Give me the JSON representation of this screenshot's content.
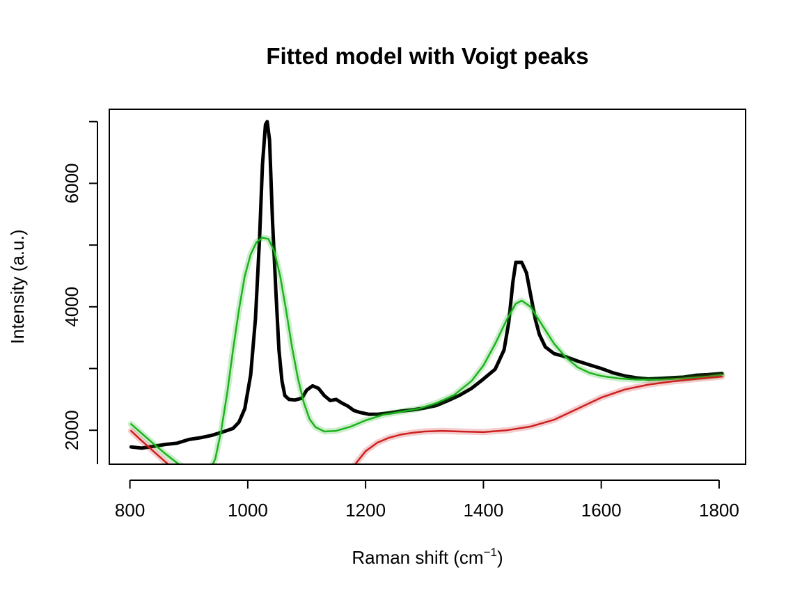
{
  "chart_data": {
    "type": "line",
    "title": "Fitted model with Voigt peaks",
    "xlabel": "Raman shift (cm",
    "xlabel_superscript": "−1",
    "xlabel_suffix": ")",
    "ylabel": "Intensity (a.u.)",
    "xlim": [
      765,
      1845
    ],
    "ylim": [
      1450,
      7200
    ],
    "x_ticks": [
      800,
      1000,
      1200,
      1400,
      1600,
      1800
    ],
    "y_ticks": [
      2000,
      4000,
      6000
    ],
    "y_tick_labels": [
      "2000",
      "4000",
      "6000"
    ],
    "x_tick_labels": [
      "800",
      "1000",
      "1200",
      "1400",
      "1600",
      "1800"
    ],
    "grid": false,
    "series": [
      {
        "color": "#000000",
        "points": [
          [
            802,
            1730
          ],
          [
            820,
            1710
          ],
          [
            840,
            1740
          ],
          [
            860,
            1770
          ],
          [
            880,
            1790
          ],
          [
            900,
            1850
          ],
          [
            920,
            1880
          ],
          [
            940,
            1920
          ],
          [
            960,
            1980
          ],
          [
            975,
            2030
          ],
          [
            985,
            2130
          ],
          [
            995,
            2350
          ],
          [
            1005,
            2900
          ],
          [
            1013,
            3800
          ],
          [
            1020,
            5100
          ],
          [
            1025,
            6300
          ],
          [
            1030,
            6950
          ],
          [
            1033,
            7000
          ],
          [
            1037,
            6700
          ],
          [
            1042,
            5400
          ],
          [
            1048,
            4200
          ],
          [
            1053,
            3300
          ],
          [
            1058,
            2800
          ],
          [
            1063,
            2560
          ],
          [
            1070,
            2500
          ],
          [
            1080,
            2490
          ],
          [
            1092,
            2520
          ],
          [
            1100,
            2650
          ],
          [
            1110,
            2720
          ],
          [
            1120,
            2680
          ],
          [
            1130,
            2560
          ],
          [
            1140,
            2480
          ],
          [
            1150,
            2500
          ],
          [
            1160,
            2440
          ],
          [
            1170,
            2390
          ],
          [
            1180,
            2320
          ],
          [
            1190,
            2290
          ],
          [
            1205,
            2260
          ],
          [
            1220,
            2260
          ],
          [
            1240,
            2280
          ],
          [
            1260,
            2310
          ],
          [
            1280,
            2330
          ],
          [
            1300,
            2360
          ],
          [
            1320,
            2400
          ],
          [
            1340,
            2480
          ],
          [
            1360,
            2570
          ],
          [
            1380,
            2680
          ],
          [
            1400,
            2830
          ],
          [
            1420,
            2990
          ],
          [
            1435,
            3300
          ],
          [
            1443,
            3750
          ],
          [
            1450,
            4400
          ],
          [
            1455,
            4720
          ],
          [
            1465,
            4720
          ],
          [
            1473,
            4550
          ],
          [
            1480,
            4200
          ],
          [
            1488,
            3800
          ],
          [
            1495,
            3550
          ],
          [
            1505,
            3350
          ],
          [
            1520,
            3240
          ],
          [
            1540,
            3190
          ],
          [
            1560,
            3120
          ],
          [
            1580,
            3060
          ],
          [
            1600,
            3000
          ],
          [
            1620,
            2930
          ],
          [
            1640,
            2880
          ],
          [
            1660,
            2850
          ],
          [
            1680,
            2830
          ],
          [
            1700,
            2840
          ],
          [
            1720,
            2850
          ],
          [
            1740,
            2860
          ],
          [
            1760,
            2890
          ],
          [
            1780,
            2900
          ],
          [
            1805,
            2920
          ]
        ]
      },
      {
        "color": "#1DB31D",
        "points": [
          [
            802,
            2100
          ],
          [
            820,
            1950
          ],
          [
            840,
            1780
          ],
          [
            860,
            1620
          ],
          [
            880,
            1470
          ],
          [
            900,
            1360
          ],
          [
            920,
            1300
          ],
          [
            935,
            1330
          ],
          [
            945,
            1540
          ],
          [
            955,
            2000
          ],
          [
            965,
            2600
          ],
          [
            975,
            3300
          ],
          [
            985,
            3950
          ],
          [
            995,
            4500
          ],
          [
            1005,
            4850
          ],
          [
            1015,
            5050
          ],
          [
            1025,
            5120
          ],
          [
            1035,
            5100
          ],
          [
            1045,
            4900
          ],
          [
            1055,
            4500
          ],
          [
            1065,
            3950
          ],
          [
            1075,
            3350
          ],
          [
            1085,
            2850
          ],
          [
            1095,
            2450
          ],
          [
            1105,
            2180
          ],
          [
            1115,
            2050
          ],
          [
            1130,
            1980
          ],
          [
            1150,
            1990
          ],
          [
            1175,
            2060
          ],
          [
            1200,
            2160
          ],
          [
            1230,
            2250
          ],
          [
            1260,
            2300
          ],
          [
            1290,
            2350
          ],
          [
            1320,
            2440
          ],
          [
            1350,
            2570
          ],
          [
            1380,
            2800
          ],
          [
            1400,
            3050
          ],
          [
            1420,
            3400
          ],
          [
            1440,
            3800
          ],
          [
            1455,
            4050
          ],
          [
            1465,
            4100
          ],
          [
            1480,
            4000
          ],
          [
            1500,
            3700
          ],
          [
            1520,
            3400
          ],
          [
            1540,
            3180
          ],
          [
            1560,
            3020
          ],
          [
            1580,
            2930
          ],
          [
            1600,
            2880
          ],
          [
            1630,
            2840
          ],
          [
            1660,
            2820
          ],
          [
            1700,
            2820
          ],
          [
            1740,
            2840
          ],
          [
            1780,
            2870
          ],
          [
            1805,
            2900
          ]
        ]
      },
      {
        "color": "#CC2020",
        "points": [
          [
            802,
            1990
          ],
          [
            820,
            1830
          ],
          [
            840,
            1660
          ],
          [
            860,
            1490
          ],
          [
            880,
            1330
          ],
          [
            1175,
            1350
          ],
          [
            1185,
            1480
          ],
          [
            1200,
            1660
          ],
          [
            1220,
            1800
          ],
          [
            1240,
            1880
          ],
          [
            1260,
            1930
          ],
          [
            1280,
            1960
          ],
          [
            1300,
            1980
          ],
          [
            1330,
            1990
          ],
          [
            1360,
            1980
          ],
          [
            1400,
            1970
          ],
          [
            1440,
            2000
          ],
          [
            1480,
            2060
          ],
          [
            1520,
            2170
          ],
          [
            1560,
            2350
          ],
          [
            1600,
            2530
          ],
          [
            1640,
            2660
          ],
          [
            1680,
            2740
          ],
          [
            1720,
            2790
          ],
          [
            1760,
            2830
          ],
          [
            1805,
            2870
          ]
        ]
      }
    ]
  }
}
